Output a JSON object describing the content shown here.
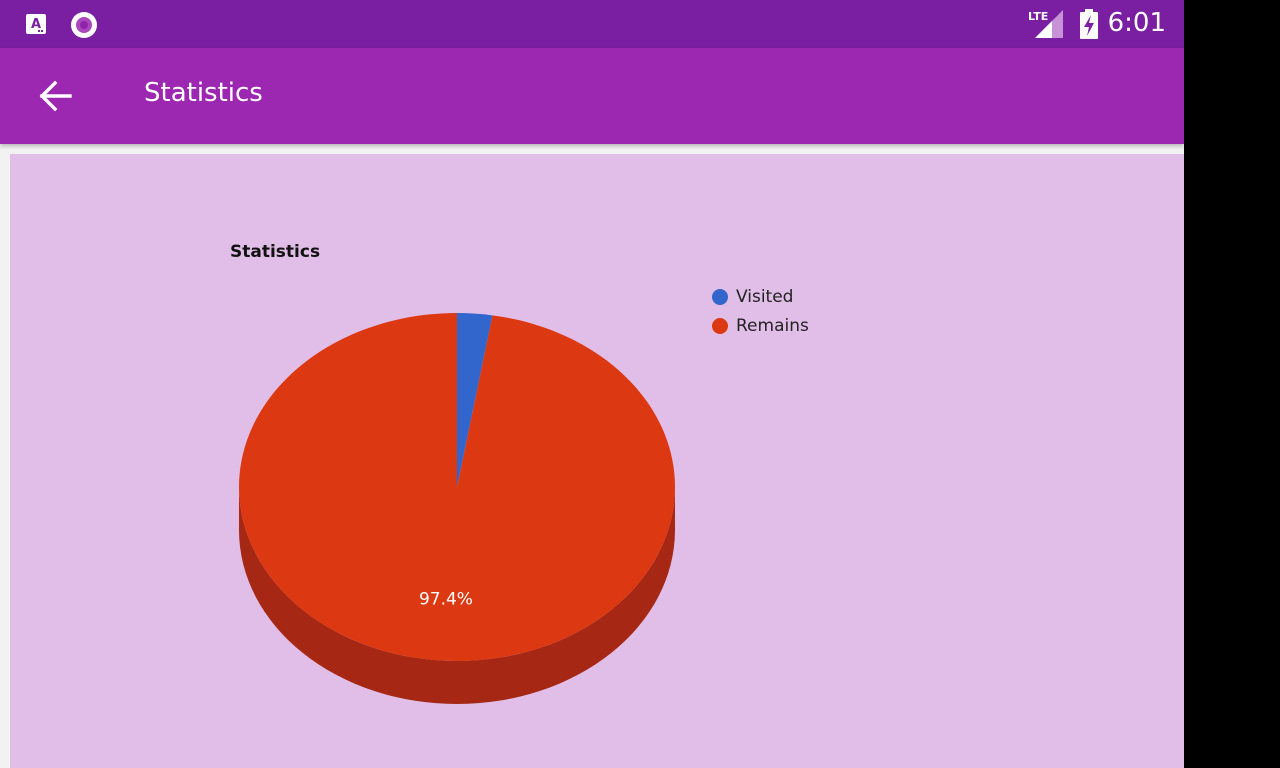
{
  "status_bar": {
    "time": "6:01",
    "network": "LTE",
    "icons": [
      "font-a-icon",
      "record-circle-icon",
      "signal-icon",
      "battery-charging-icon"
    ]
  },
  "app_bar": {
    "title": "Statistics",
    "back_icon": "arrow-back-icon"
  },
  "chart_data": {
    "type": "pie",
    "title": "Statistics",
    "three_d": true,
    "legend_position": "right",
    "slices": [
      {
        "label": "Visited",
        "value": 2.6,
        "color": "#3366cc"
      },
      {
        "label": "Remains",
        "value": 97.4,
        "color": "#dc3912"
      }
    ],
    "data_labels": [
      "97.4%"
    ]
  },
  "nav_bar": {
    "buttons": [
      "recents-button",
      "home-button",
      "back-button"
    ]
  },
  "colors": {
    "status_bar": "#7b1fa2",
    "app_bar": "#9c27b0",
    "content_bg": "#e1bee7"
  }
}
